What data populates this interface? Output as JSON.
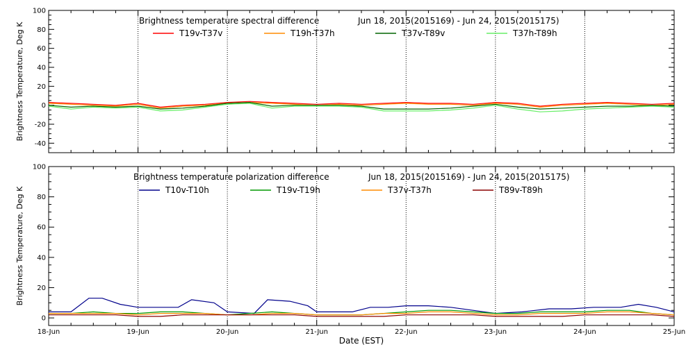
{
  "chart_data": [
    {
      "type": "line",
      "title": "Brightness temperature spectral difference",
      "date_range": "Jun 18, 2015(2015169) - Jun 24, 2015(2015175)",
      "ylabel": "Brightness Temperature, Deg K",
      "xlabel": "",
      "xlim": [
        0,
        7
      ],
      "ylim": [
        -50,
        100
      ],
      "yticks": [
        -40,
        -20,
        0,
        20,
        40,
        60,
        80,
        100
      ],
      "categories": [
        "18-Jun",
        "19-Jun",
        "20-Jun",
        "21-Jun",
        "22-Jun",
        "23-Jun",
        "24-Jun",
        "25-Jun"
      ],
      "grid": "vertical dotted at day boundaries",
      "legend_placement": "top",
      "series": [
        {
          "name": "T19v-T37v",
          "color": "#ff0000",
          "x": [
            0,
            0.25,
            0.5,
            0.75,
            1.0,
            1.25,
            1.5,
            1.75,
            2.0,
            2.25,
            2.5,
            2.75,
            3.0,
            3.25,
            3.5,
            3.75,
            4.0,
            4.25,
            4.5,
            4.75,
            5.0,
            5.25,
            5.5,
            5.75,
            6.0,
            6.25,
            6.5,
            6.75,
            7.0
          ],
          "values": [
            3,
            2,
            1,
            0,
            2,
            -2,
            0,
            1,
            3,
            4,
            3,
            2,
            1,
            2,
            1,
            2,
            3,
            2,
            2,
            1,
            3,
            2,
            -1,
            1,
            2,
            3,
            2,
            1,
            2
          ]
        },
        {
          "name": "T19h-T37h",
          "color": "#ff8c00",
          "x": [
            0,
            0.25,
            0.5,
            0.75,
            1.0,
            1.25,
            1.5,
            1.75,
            2.0,
            2.25,
            2.5,
            2.75,
            3.0,
            3.25,
            3.5,
            3.75,
            4.0,
            4.25,
            4.5,
            4.75,
            5.0,
            5.25,
            5.5,
            5.75,
            6.0,
            6.25,
            6.5,
            6.75,
            7.0
          ],
          "values": [
            2,
            1,
            0,
            -1,
            1,
            -3,
            -1,
            0,
            2,
            3,
            2,
            1,
            0,
            1,
            0,
            1,
            2,
            1,
            1,
            0,
            2,
            1,
            -2,
            0,
            1,
            2,
            1,
            0,
            1
          ]
        },
        {
          "name": "T37v-T89v",
          "color": "#006400",
          "x": [
            0,
            0.25,
            0.5,
            0.75,
            1.0,
            1.25,
            1.5,
            1.75,
            2.0,
            2.25,
            2.5,
            2.75,
            3.0,
            3.25,
            3.5,
            3.75,
            4.0,
            4.25,
            4.5,
            4.75,
            5.0,
            5.25,
            5.5,
            5.75,
            6.0,
            6.25,
            6.5,
            6.75,
            7.0
          ],
          "values": [
            0,
            -2,
            -1,
            -2,
            -1,
            -4,
            -3,
            -1,
            2,
            3,
            -1,
            0,
            0,
            0,
            -1,
            -4,
            -4,
            -4,
            -3,
            -1,
            1,
            -2,
            -4,
            -3,
            -2,
            -1,
            -1,
            0,
            -1
          ]
        },
        {
          "name": "T37h-T89h",
          "color": "#66ee66",
          "x": [
            0,
            0.25,
            0.5,
            0.75,
            1.0,
            1.25,
            1.5,
            1.75,
            2.0,
            2.25,
            2.5,
            2.75,
            3.0,
            3.25,
            3.5,
            3.75,
            4.0,
            4.25,
            4.5,
            4.75,
            5.0,
            5.25,
            5.5,
            5.75,
            6.0,
            6.25,
            6.5,
            6.75,
            7.0
          ],
          "values": [
            -1,
            -4,
            -2,
            -3,
            -2,
            -6,
            -5,
            -2,
            1,
            2,
            -3,
            -1,
            -1,
            -1,
            -2,
            -6,
            -6,
            -6,
            -5,
            -3,
            0,
            -4,
            -7,
            -6,
            -4,
            -3,
            -2,
            -1,
            -2
          ]
        }
      ]
    },
    {
      "type": "line",
      "title": "Brightness temperature polarization difference",
      "date_range": "Jun 18, 2015(2015169) - Jun 24, 2015(2015175)",
      "ylabel": "Brightness Temperature, Deg K",
      "xlabel": "Date (EST)",
      "xlim": [
        0,
        7
      ],
      "ylim": [
        -5,
        100
      ],
      "yticks": [
        0,
        20,
        40,
        60,
        80,
        100
      ],
      "categories": [
        "18-Jun",
        "19-Jun",
        "20-Jun",
        "21-Jun",
        "22-Jun",
        "23-Jun",
        "24-Jun",
        "25-Jun"
      ],
      "grid": "vertical dotted at day boundaries",
      "legend_placement": "top",
      "series": [
        {
          "name": "T10v-T10h",
          "color": "#00008b",
          "x": [
            0,
            0.25,
            0.45,
            0.6,
            0.8,
            1.0,
            1.2,
            1.45,
            1.6,
            1.85,
            2.0,
            2.3,
            2.45,
            2.7,
            2.9,
            3.0,
            3.25,
            3.4,
            3.6,
            3.8,
            4.0,
            4.25,
            4.5,
            4.75,
            5.0,
            5.3,
            5.6,
            5.85,
            6.1,
            6.4,
            6.6,
            6.8,
            7.0
          ],
          "values": [
            4,
            4,
            13,
            13,
            9,
            7,
            7,
            7,
            12,
            10,
            4,
            3,
            12,
            11,
            8,
            4,
            4,
            4,
            7,
            7,
            8,
            8,
            7,
            5,
            3,
            4,
            6,
            6,
            7,
            7,
            9,
            7,
            4
          ]
        },
        {
          "name": "T19v-T19h",
          "color": "#009900",
          "x": [
            0,
            0.25,
            0.5,
            0.75,
            1.0,
            1.25,
            1.5,
            1.75,
            2.0,
            2.25,
            2.5,
            2.75,
            3.0,
            3.25,
            3.5,
            3.75,
            4.0,
            4.25,
            4.5,
            4.75,
            5.0,
            5.25,
            5.5,
            5.75,
            6.0,
            6.25,
            6.5,
            6.75,
            7.0
          ],
          "values": [
            3,
            3,
            4,
            3,
            3,
            4,
            4,
            3,
            2,
            3,
            4,
            3,
            2,
            2,
            2,
            3,
            4,
            5,
            5,
            4,
            3,
            3,
            4,
            4,
            4,
            5,
            5,
            3,
            2
          ]
        },
        {
          "name": "T37v-T37h",
          "color": "#ff8c00",
          "x": [
            0,
            0.25,
            0.5,
            0.75,
            1.0,
            1.25,
            1.5,
            1.75,
            2.0,
            2.25,
            2.5,
            2.75,
            3.0,
            3.25,
            3.5,
            3.75,
            4.0,
            4.25,
            4.5,
            4.75,
            5.0,
            5.25,
            5.5,
            5.75,
            6.0,
            6.25,
            6.5,
            6.75,
            7.0
          ],
          "values": [
            3,
            3,
            3,
            3,
            2,
            3,
            3,
            3,
            2,
            2,
            3,
            3,
            2,
            2,
            2,
            3,
            3,
            4,
            4,
            3,
            2,
            2,
            3,
            3,
            3,
            4,
            4,
            3,
            2
          ]
        },
        {
          "name": "T89v-T89h",
          "color": "#8b0000",
          "x": [
            0,
            0.25,
            0.5,
            0.75,
            1.0,
            1.25,
            1.5,
            1.75,
            2.0,
            2.25,
            2.5,
            2.75,
            3.0,
            3.25,
            3.5,
            3.75,
            4.0,
            4.25,
            4.5,
            4.75,
            5.0,
            5.25,
            5.5,
            5.75,
            6.0,
            6.25,
            6.5,
            6.75,
            7.0
          ],
          "values": [
            2,
            2,
            2,
            2,
            1,
            1,
            2,
            2,
            2,
            2,
            2,
            2,
            1,
            1,
            1,
            1,
            2,
            2,
            2,
            2,
            1,
            1,
            1,
            1,
            2,
            2,
            2,
            2,
            1
          ]
        }
      ]
    }
  ]
}
